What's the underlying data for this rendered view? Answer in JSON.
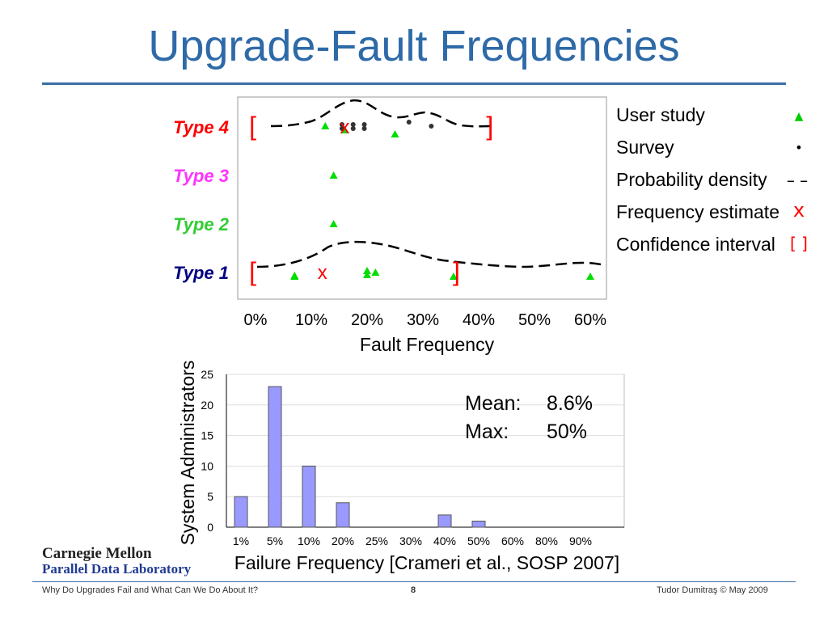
{
  "slide": {
    "title": "Upgrade-Fault Frequencies",
    "footer_left": "Why Do Upgrades Fail and What Can We Do About It?",
    "page_number": "8",
    "footer_right": "Tudor Dumitraş  © May 2009",
    "logo_line1": "Carnegie Mellon",
    "logo_line2": "Parallel Data Laboratory",
    "colors": {
      "title": "#2e6aa8",
      "rule": "#3b6ea5"
    }
  },
  "chart_data": [
    {
      "type": "scatter",
      "xlabel": "Fault Frequency",
      "ylabel": "",
      "x_ticks": [
        "0%",
        "10%",
        "20%",
        "30%",
        "40%",
        "50%",
        "60%"
      ],
      "xlim": [
        0,
        62
      ],
      "categories": [
        "Type 4",
        "Type 3",
        "Type 2",
        "Type 1"
      ],
      "category_colors": [
        "#ff0000",
        "#ff33ff",
        "#33cc33",
        "#000080"
      ],
      "legend": {
        "placement": "right",
        "entries": [
          {
            "label": "User study",
            "symbol": "▲",
            "color": "#00cc00"
          },
          {
            "label": "Survey",
            "symbol": "•",
            "color": "#000000"
          },
          {
            "label": "Probability density",
            "symbol": "– –",
            "color": "#000000"
          },
          {
            "label": "Frequency estimate",
            "symbol": "x",
            "color": "#ff0000"
          },
          {
            "label": "Confidence interval",
            "symbol": "[ ]",
            "color": "#ff0000"
          }
        ]
      },
      "series": [
        {
          "name": "User study",
          "points": [
            {
              "category": "Type 4",
              "x": [
                12.5,
                16,
                25
              ]
            },
            {
              "category": "Type 3",
              "x": [
                14
              ]
            },
            {
              "category": "Type 2",
              "x": [
                14
              ]
            },
            {
              "category": "Type 1",
              "x": [
                7,
                7,
                20,
                20,
                21.5,
                35.5,
                60
              ]
            }
          ]
        },
        {
          "name": "Survey",
          "points": [
            {
              "category": "Type 4",
              "x": [
                15.5,
                15.5,
                17.5,
                17.5,
                19.5,
                19.5,
                27.5,
                31.5
              ]
            }
          ]
        },
        {
          "name": "Frequency estimate",
          "points": [
            {
              "category": "Type 4",
              "x": 16
            },
            {
              "category": "Type 1",
              "x": 12
            }
          ]
        },
        {
          "name": "Confidence interval",
          "points": [
            {
              "category": "Type 4",
              "low": -0.5,
              "high": 42
            },
            {
              "category": "Type 1",
              "low": -0.5,
              "high": 36
            }
          ]
        }
      ]
    },
    {
      "type": "bar",
      "xlabel": "Failure Frequency [Crameri et al., SOSP 2007]",
      "ylabel": "System Administrators",
      "categories": [
        "1%",
        "5%",
        "10%",
        "20%",
        "25%",
        "30%",
        "40%",
        "50%",
        "60%",
        "80%",
        "90%"
      ],
      "values": [
        5,
        23,
        10,
        4,
        0,
        0,
        2,
        1,
        0,
        0,
        0
      ],
      "ylim": [
        0,
        25
      ],
      "y_ticks": [
        "0",
        "5",
        "10",
        "15",
        "20",
        "25"
      ],
      "bar_color": "#9999ff",
      "annotations": [
        {
          "label": "Mean:",
          "value": "8.6%"
        },
        {
          "label": "Max:",
          "value": "50%"
        }
      ]
    }
  ]
}
